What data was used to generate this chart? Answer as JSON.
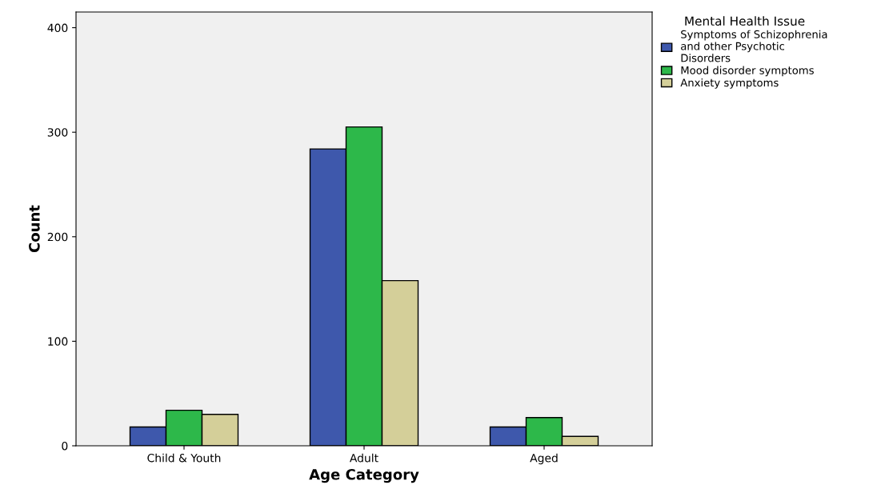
{
  "chart_data": {
    "type": "bar",
    "xlabel": "Age Category",
    "ylabel": "Count",
    "legend_title": "Mental Health Issue",
    "categories": [
      "Child & Youth",
      "Adult",
      "Aged"
    ],
    "series": [
      {
        "name": "Symptoms of Schizophrenia\nand other Psychotic\nDisorders",
        "color": "#3e58ac",
        "values": [
          18,
          284,
          18
        ]
      },
      {
        "name": "Mood disorder symptoms",
        "color": "#2db84a",
        "values": [
          34,
          305,
          27
        ]
      },
      {
        "name": "Anxiety symptoms",
        "color": "#d4cf99",
        "values": [
          30,
          158,
          9
        ]
      }
    ],
    "ylim": [
      0,
      415
    ],
    "yticks": [
      0,
      100,
      200,
      300,
      400
    ],
    "grid": false,
    "legend": "top right"
  }
}
